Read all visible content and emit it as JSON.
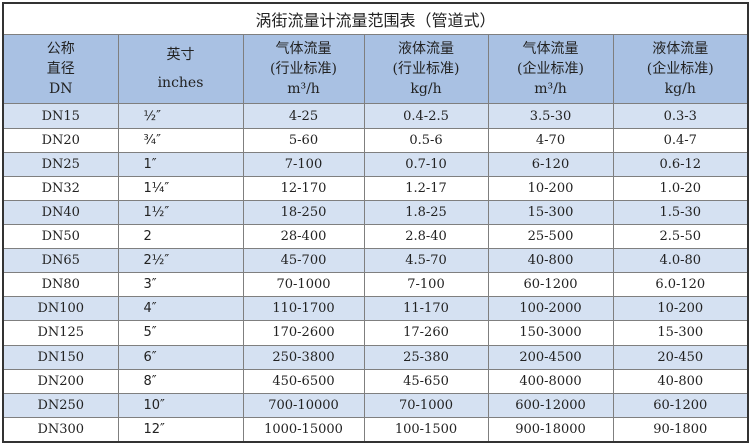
{
  "title": "涡街流量计流量范围表（管道式）",
  "headers": [
    [
      "公称",
      "直径",
      "DN"
    ],
    [
      "英寸",
      "inches"
    ],
    [
      "气体流量",
      "(行业标准)",
      "m³/h"
    ],
    [
      "液体流量",
      "(行业标准)",
      "kg/h"
    ],
    [
      "气体流量",
      "(企业标准)",
      "m³/h"
    ],
    [
      "液体流量",
      "(企业标准)",
      "kg/h"
    ]
  ],
  "rows": [
    [
      "DN15",
      "½″",
      "4-25",
      "0.4-2.5",
      "3.5-30",
      "0.3-3"
    ],
    [
      "DN20",
      "¾″",
      "5-60",
      "0.5-6",
      "4-70",
      "0.4-7"
    ],
    [
      "DN25",
      "1″",
      "7-100",
      "0.7-10",
      "6-120",
      "0.6-12"
    ],
    [
      "DN32",
      "1¼″",
      "12-170",
      "1.2-17",
      "10-200",
      "1.0-20"
    ],
    [
      "DN40",
      "1½″",
      "18-250",
      "1.8-25",
      "15-300",
      "1.5-30"
    ],
    [
      "DN50",
      "2",
      "28-400",
      "2.8-40",
      "25-500",
      "2.5-50"
    ],
    [
      "DN65",
      "2½″",
      "45-700",
      "4.5-70",
      "40-800",
      "4.0-80"
    ],
    [
      "DN80",
      "3″",
      "70-1000",
      "7-100",
      "60-1200",
      "6.0-120"
    ],
    [
      "DN100",
      "4″",
      "110-1700",
      "11-170",
      "100-2000",
      "10-200"
    ],
    [
      "DN125",
      "5″",
      "170-2600",
      "17-260",
      "150-3000",
      "15-300"
    ],
    [
      "DN150",
      "6″",
      "250-3800",
      "25-380",
      "200-4500",
      "20-450"
    ],
    [
      "DN200",
      "8″",
      "450-6500",
      "45-650",
      "400-8000",
      "40-800"
    ],
    [
      "DN250",
      "10″",
      "700-10000",
      "70-1000",
      "600-12000",
      "60-1200"
    ],
    [
      "DN300",
      "12″",
      "1000-15000",
      "100-1500",
      "900-18000",
      "90-1800"
    ]
  ],
  "colors": {
    "header_bg": "#a9c1e3",
    "stripe_bg": "#d5e1f2"
  }
}
